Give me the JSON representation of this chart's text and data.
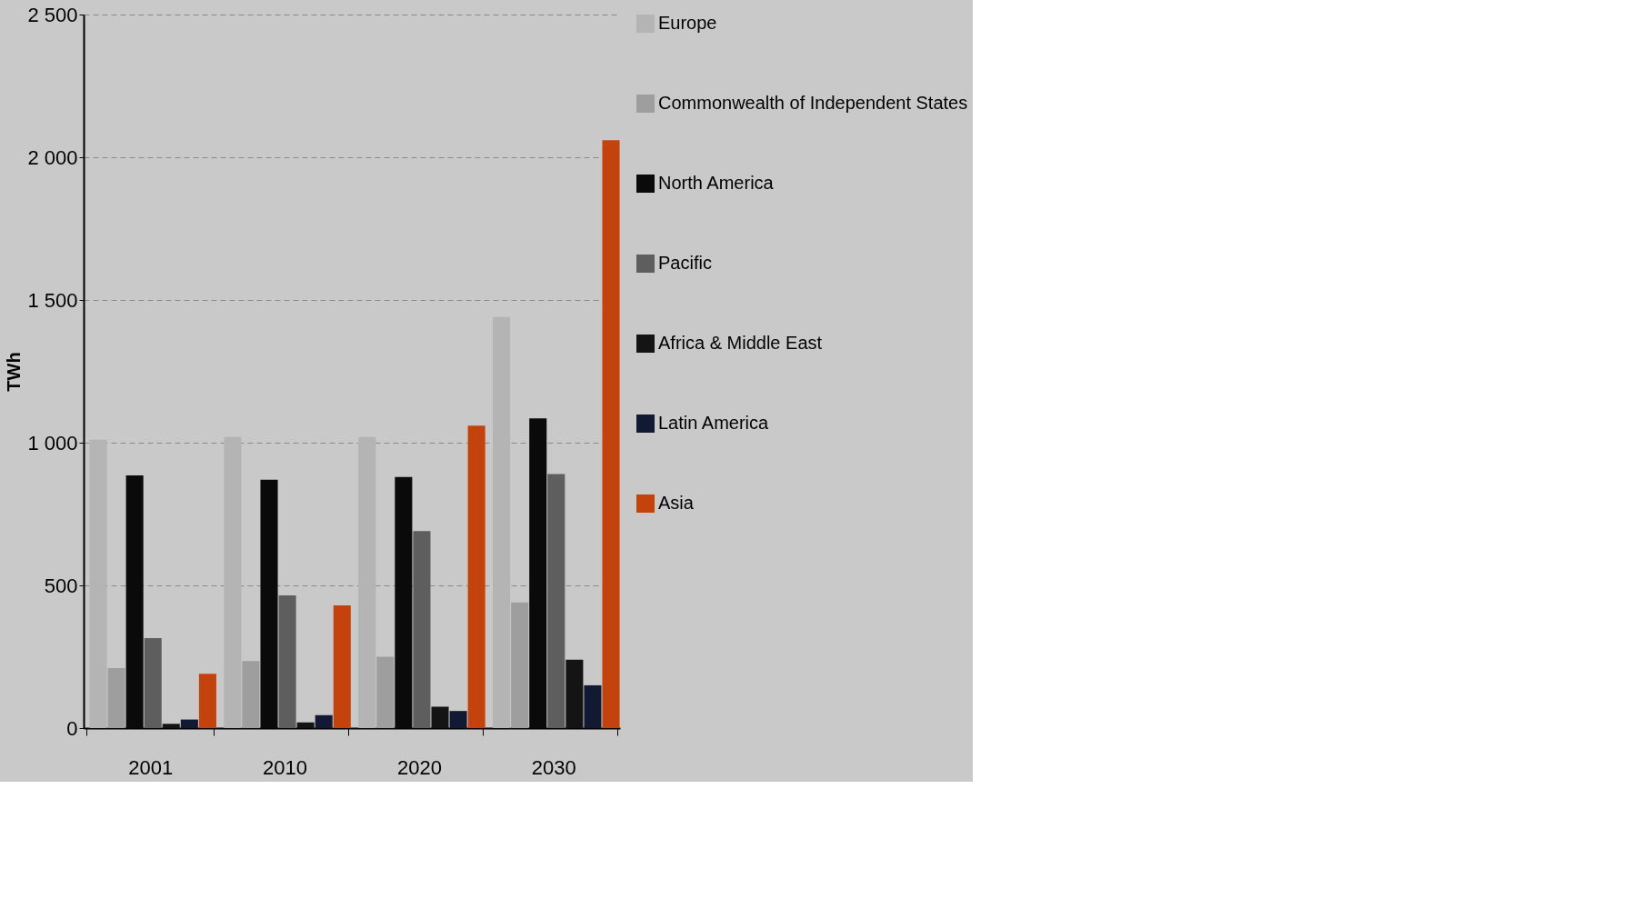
{
  "chart_data": {
    "type": "bar",
    "ylabel": "TWh",
    "categories": [
      "2001",
      "2010",
      "2020",
      "2030"
    ],
    "series": [
      {
        "name": "Europe",
        "color": "#b4b4b4",
        "values": [
          1010,
          1020,
          1020,
          1440
        ]
      },
      {
        "name": "Commonwealth of Independent States",
        "color": "#9e9e9e",
        "values": [
          210,
          235,
          250,
          440
        ]
      },
      {
        "name": "North America",
        "color": "#0a0a0a",
        "values": [
          885,
          870,
          880,
          1085
        ]
      },
      {
        "name": "Pacific",
        "color": "#5e5e5e",
        "values": [
          315,
          465,
          690,
          890
        ]
      },
      {
        "name": "Africa & Middle East",
        "color": "#141414",
        "values": [
          15,
          20,
          75,
          240
        ]
      },
      {
        "name": "Latin America",
        "color": "#121a33",
        "values": [
          30,
          45,
          60,
          150
        ]
      },
      {
        "name": "Asia",
        "color": "#c4420c",
        "values": [
          190,
          430,
          1060,
          2060
        ]
      }
    ],
    "ylim": [
      0,
      2500
    ],
    "yticks": [
      0,
      500,
      {
        "value": 1000,
        "label": "1 000"
      },
      {
        "value": 1500,
        "label": "1 500"
      },
      {
        "value": 2000,
        "label": "2 000"
      },
      {
        "value": 2500,
        "label": "2 500"
      }
    ],
    "grid": "y",
    "legend": "right"
  }
}
